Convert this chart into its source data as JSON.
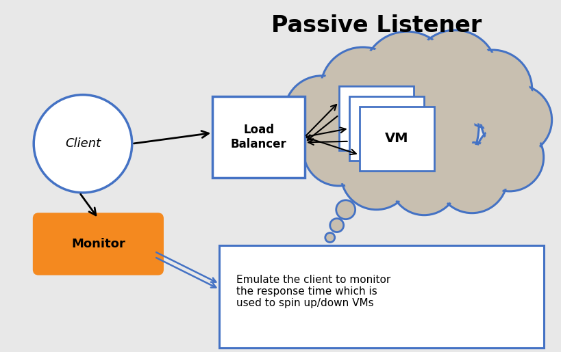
{
  "title": "Passive Listener",
  "title_fontsize": 24,
  "title_fontweight": "bold",
  "bg_color": "#e8e8e8",
  "client_label": "Client",
  "load_balancer_label": "Load\nBalancer",
  "monitor_label": "Monitor",
  "vm_label": "VM",
  "annotation_text": "Emulate the client to monitor\nthe response time which is\nused to spin up/down VMs",
  "client_fill": "white",
  "client_edge": "#4472c4",
  "cloud_fill": "#c8bfb0",
  "cloud_edge": "#4472c4",
  "lb_fill": "white",
  "lb_edge": "#4472c4",
  "monitor_fill": "#f4891f",
  "monitor_edge": "#f4891f",
  "vm_fill": "white",
  "vm_edge": "#4472c4",
  "annotation_edge": "#4472c4",
  "annotation_fill": "white",
  "arrow_color": "black",
  "blue_arrow_color": "#4472c4"
}
